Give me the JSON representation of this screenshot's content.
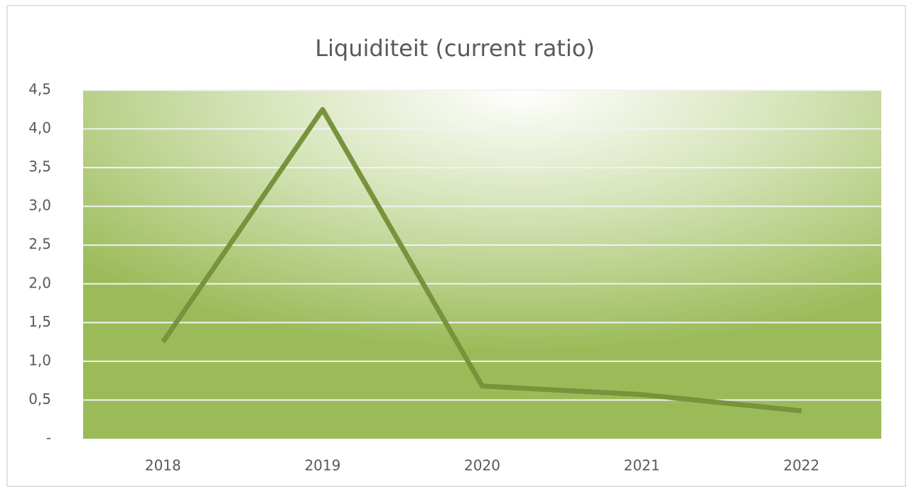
{
  "chart_data": {
    "type": "line",
    "title": "Liquiditeit (current ratio)",
    "categories": [
      "2018",
      "2019",
      "2020",
      "2021",
      "2022"
    ],
    "series": [
      {
        "name": "Liquiditeit (current ratio)",
        "color": "#77933c",
        "values": [
          1.25,
          4.25,
          0.68,
          0.57,
          0.36
        ]
      }
    ],
    "ylim": [
      0,
      4.5
    ],
    "yticks": [
      {
        "value": 0,
        "label": "-"
      },
      {
        "value": 0.5,
        "label": "0,5"
      },
      {
        "value": 1,
        "label": "1,0"
      },
      {
        "value": 1.5,
        "label": "1,5"
      },
      {
        "value": 2,
        "label": "2,0"
      },
      {
        "value": 2.5,
        "label": "2,5"
      },
      {
        "value": 3,
        "label": "3,0"
      },
      {
        "value": 3.5,
        "label": "3,5"
      },
      {
        "value": 4,
        "label": "4,0"
      },
      {
        "value": 4.5,
        "label": "4,5"
      }
    ],
    "grid": true
  }
}
